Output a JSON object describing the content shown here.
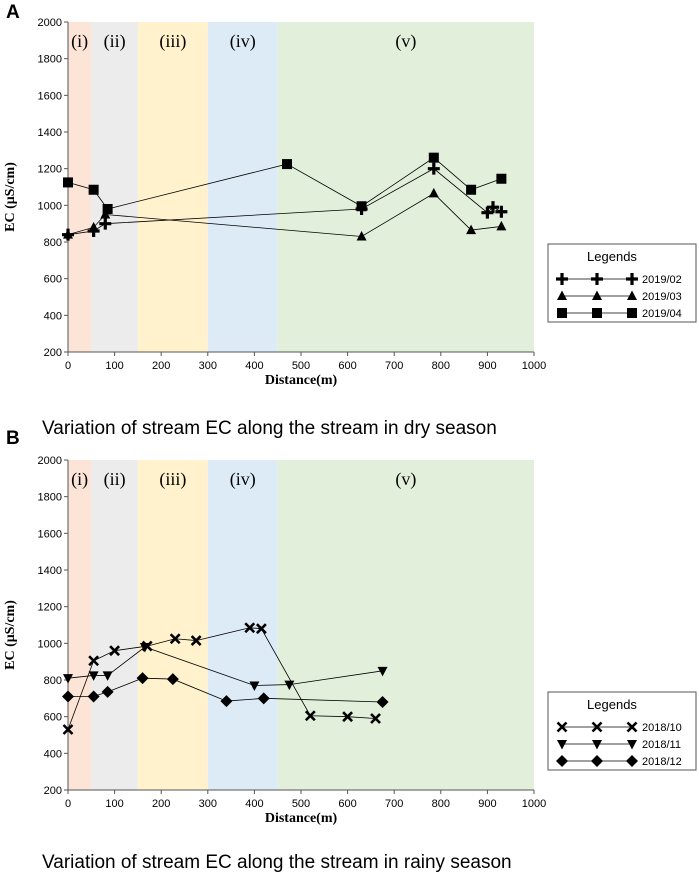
{
  "chart_data": [
    {
      "type": "line",
      "panel": "A",
      "caption": "Variation of stream EC along the stream in dry season",
      "xlabel": "Distance(m)",
      "ylabel": "EC (μS/cm)",
      "xlim": [
        0,
        1000
      ],
      "ylim": [
        200,
        2000
      ],
      "xticks": [
        "0",
        "100",
        "200",
        "300",
        "400",
        "500",
        "600",
        "700",
        "800",
        "900",
        "1000"
      ],
      "yticks": [
        "200",
        "400",
        "600",
        "800",
        "1000",
        "1200",
        "1400",
        "1600",
        "1800",
        "2000"
      ],
      "zones": [
        {
          "label": "(i)",
          "from": 0,
          "to": 50,
          "color": "#fce4d6"
        },
        {
          "label": "(ii)",
          "from": 50,
          "to": 150,
          "color": "#ececec"
        },
        {
          "label": "(iii)",
          "from": 150,
          "to": 300,
          "color": "#fff2cc"
        },
        {
          "label": "(iv)",
          "from": 300,
          "to": 450,
          "color": "#ddebf7"
        },
        {
          "label": "(v)",
          "from": 450,
          "to": 1000,
          "color": "#e2efda"
        }
      ],
      "legend_title": "Legends",
      "series": [
        {
          "name": "2019/02",
          "marker": "plus",
          "x": [
            0,
            55,
            80,
            630,
            785,
            900,
            912,
            930
          ],
          "y": [
            840,
            860,
            900,
            980,
            1200,
            960,
            990,
            965
          ]
        },
        {
          "name": "2019/03",
          "marker": "triangle",
          "x": [
            0,
            55,
            80,
            630,
            785,
            865,
            930
          ],
          "y": [
            840,
            880,
            950,
            830,
            1065,
            865,
            885
          ]
        },
        {
          "name": "2019/04",
          "marker": "square",
          "x": [
            0,
            55,
            85,
            470,
            630,
            785,
            865,
            930
          ],
          "y": [
            1125,
            1085,
            980,
            1225,
            995,
            1260,
            1085,
            1145
          ]
        }
      ]
    },
    {
      "type": "line",
      "panel": "B",
      "caption": "Variation of stream EC along the stream in rainy season",
      "xlabel": "Distance(m)",
      "ylabel": "EC (μS/cm)",
      "xlim": [
        0,
        1000
      ],
      "ylim": [
        200,
        2000
      ],
      "xticks": [
        "0",
        "100",
        "200",
        "300",
        "400",
        "500",
        "600",
        "700",
        "800",
        "900",
        "1000"
      ],
      "yticks": [
        "200",
        "400",
        "600",
        "800",
        "1000",
        "1200",
        "1400",
        "1600",
        "1800",
        "2000"
      ],
      "zones": [
        {
          "label": "(i)",
          "from": 0,
          "to": 50,
          "color": "#fce4d6"
        },
        {
          "label": "(ii)",
          "from": 50,
          "to": 150,
          "color": "#ececec"
        },
        {
          "label": "(iii)",
          "from": 150,
          "to": 300,
          "color": "#fff2cc"
        },
        {
          "label": "(iv)",
          "from": 300,
          "to": 450,
          "color": "#ddebf7"
        },
        {
          "label": "(v)",
          "from": 450,
          "to": 1000,
          "color": "#e2efda"
        }
      ],
      "legend_title": "Legends",
      "series": [
        {
          "name": "2018/10",
          "marker": "x",
          "x": [
            0,
            55,
            100,
            170,
            230,
            275,
            390,
            415,
            520,
            600,
            660
          ],
          "y": [
            530,
            905,
            960,
            985,
            1025,
            1015,
            1085,
            1080,
            605,
            600,
            590
          ]
        },
        {
          "name": "2018/11",
          "marker": "triangle-down",
          "x": [
            0,
            55,
            85,
            165,
            400,
            475,
            675
          ],
          "y": [
            810,
            825,
            825,
            980,
            770,
            775,
            850
          ]
        },
        {
          "name": "2018/12",
          "marker": "diamond",
          "x": [
            0,
            55,
            85,
            160,
            225,
            340,
            420,
            675
          ],
          "y": [
            710,
            710,
            735,
            810,
            805,
            685,
            700,
            680
          ]
        }
      ]
    }
  ]
}
